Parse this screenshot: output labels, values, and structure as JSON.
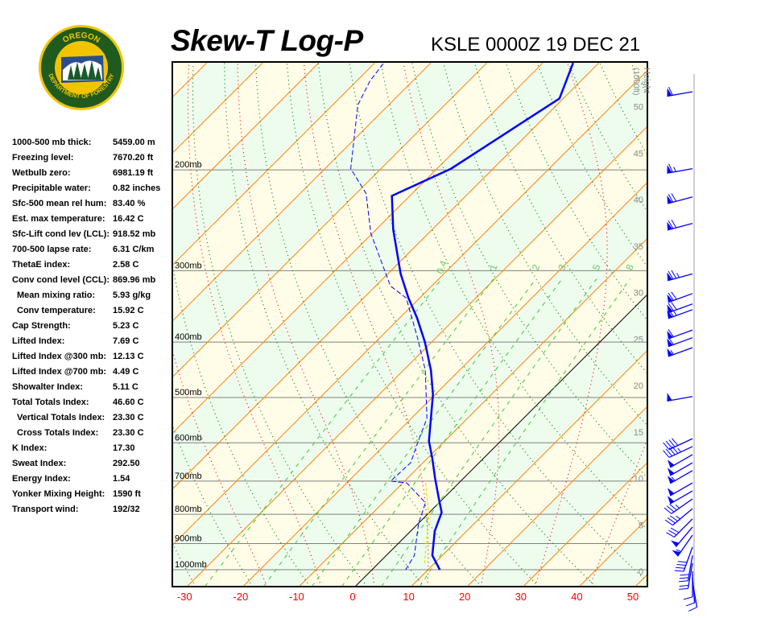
{
  "header": {
    "title": "Skew-T Log-P",
    "subtitle": "KSLE 0000Z 19 DEC 21"
  },
  "logo": {
    "text_top": "OREGON",
    "text_bottom": "DEPARTMENT OF FORESTRY"
  },
  "stats": [
    {
      "label": "1000-500 mb thick:",
      "value": "5459.00 m",
      "indent": false
    },
    {
      "label": "Freezing level:",
      "value": "7670.20 ft",
      "indent": false
    },
    {
      "label": "Wetbulb zero:",
      "value": "6981.19 ft",
      "indent": false
    },
    {
      "label": "Precipitable water:",
      "value": "0.82 inches",
      "indent": false
    },
    {
      "label": "Sfc-500 mean rel hum:",
      "value": "83.40 %",
      "indent": false
    },
    {
      "label": "Est. max temperature:",
      "value": "16.42 C",
      "indent": false
    },
    {
      "label": "Sfc-Lift cond lev (LCL):",
      "value": "918.52 mb",
      "indent": false
    },
    {
      "label": "700-500 lapse rate:",
      "value": "6.31 C/km",
      "indent": false
    },
    {
      "label": "ThetaE index:",
      "value": "2.58 C",
      "indent": false
    },
    {
      "label": "Conv cond level (CCL):",
      "value": "869.96 mb",
      "indent": false
    },
    {
      "label": "Mean mixing ratio:",
      "value": "5.93 g/kg",
      "indent": true
    },
    {
      "label": "Conv temperature:",
      "value": "15.92 C",
      "indent": true
    },
    {
      "label": "Cap Strength:",
      "value": "5.23 C",
      "indent": false
    },
    {
      "label": "Lifted Index:",
      "value": "7.69 C",
      "indent": false
    },
    {
      "label": "Lifted Index @300 mb:",
      "value": "12.13 C",
      "indent": false
    },
    {
      "label": "Lifted Index @700 mb:",
      "value": "4.49 C",
      "indent": false
    },
    {
      "label": "Showalter Index:",
      "value": "5.11 C",
      "indent": false
    },
    {
      "label": "Total Totals Index:",
      "value": "46.60 C",
      "indent": false
    },
    {
      "label": "Vertical Totals Index:",
      "value": "23.30 C",
      "indent": true
    },
    {
      "label": "Cross Totals Index:",
      "value": "23.30 C",
      "indent": true
    },
    {
      "label": "K Index:",
      "value": "17.30",
      "indent": false
    },
    {
      "label": "Sweat Index:",
      "value": "292.50",
      "indent": false
    },
    {
      "label": "Energy Index:",
      "value": "1.54",
      "indent": false
    },
    {
      "label": "Yonker Mixing Height:",
      "value": "1590 ft",
      "indent": false
    },
    {
      "label": "Transport wind:",
      "value": "192/32",
      "indent": false
    }
  ],
  "chart_data": {
    "type": "line",
    "title": "Skew-T Log-P",
    "subtitle": "KSLE 0000Z 19 DEC 21",
    "xlabel": "",
    "ylabel": "",
    "x_unit": "C",
    "x_ticks": [
      "-30",
      "-20",
      "-10",
      "0",
      "10",
      "20",
      "30",
      "40",
      "50"
    ],
    "pressure_range_mb": [
      1070,
      130
    ],
    "pressure_levels": [
      {
        "p": 200,
        "label": "200mb"
      },
      {
        "p": 300,
        "label": "300mb"
      },
      {
        "p": 400,
        "label": "400mb"
      },
      {
        "p": 500,
        "label": "500mb"
      },
      {
        "p": 600,
        "label": "600mb"
      },
      {
        "p": 700,
        "label": "700mb"
      },
      {
        "p": 800,
        "label": "800mb"
      },
      {
        "p": 900,
        "label": "900mb"
      },
      {
        "p": 1000,
        "label": "1000mb"
      }
    ],
    "height_axis": {
      "label": "Height",
      "unit": "(1000ft)",
      "ticks": [
        "0",
        "5",
        "10",
        "15",
        "20",
        "25",
        "30",
        "35",
        "40",
        "45",
        "50"
      ]
    },
    "mixing_ratio_lines": [
      "0.4",
      "1",
      "2",
      "3",
      "5",
      "8"
    ],
    "colors": {
      "temperature": "#0000ff",
      "dewpoint": "#0000ff",
      "wetbulb": "#e6e600",
      "isotherm": "#ff8000",
      "dry_adiabat": "#008000",
      "moist_adiabat": "#ff0000",
      "mixing_ratio": "#33cc33",
      "axis_label": "#ff0000",
      "band_a": "#fffde8",
      "band_b": "#eefcee"
    },
    "series": [
      {
        "name": "temperature",
        "p": [
          1000,
          944,
          856,
          794,
          752,
          693,
          639,
          596,
          494,
          448,
          400,
          363,
          335,
          304,
          254,
          222,
          199,
          150,
          130
        ],
        "t": [
          12.1,
          8.2,
          4.3,
          2.2,
          -0.7,
          -5.0,
          -9.1,
          -12.8,
          -20.4,
          -25.1,
          -31.2,
          -36.9,
          -42.0,
          -47.7,
          -57.0,
          -63.2,
          -57.5,
          -50.7,
          -54.6
        ]
      },
      {
        "name": "dewpoint",
        "p": [
          1000,
          944,
          829,
          764,
          705,
          700,
          650,
          596,
          544,
          448,
          393,
          335,
          319,
          258,
          220,
          199,
          154,
          140,
          130
        ],
        "t": [
          6.0,
          5.0,
          0.0,
          -2.4,
          -9.3,
          -12.5,
          -12.2,
          -14.7,
          -17.2,
          -26.1,
          -33.3,
          -42.4,
          -47.4,
          -60.3,
          -68.2,
          -75.4,
          -85.5,
          -87.6,
          -88.4
        ]
      },
      {
        "name": "wetbulb",
        "p": [
          974,
          803,
          700
        ],
        "t": [
          8.2,
          0.4,
          -6.3
        ]
      }
    ],
    "winds": [
      {
        "p": 146,
        "dir": 260,
        "spd": 60
      },
      {
        "p": 199,
        "dir": 260,
        "spd": 65
      },
      {
        "p": 223,
        "dir": 255,
        "spd": 70
      },
      {
        "p": 248,
        "dir": 255,
        "spd": 70
      },
      {
        "p": 304,
        "dir": 255,
        "spd": 75
      },
      {
        "p": 329,
        "dir": 250,
        "spd": 70
      },
      {
        "p": 343,
        "dir": 250,
        "spd": 70
      },
      {
        "p": 351,
        "dir": 250,
        "spd": 65
      },
      {
        "p": 381,
        "dir": 250,
        "spd": 60
      },
      {
        "p": 393,
        "dir": 250,
        "spd": 60
      },
      {
        "p": 409,
        "dir": 250,
        "spd": 55
      },
      {
        "p": 498,
        "dir": 260,
        "spd": 50
      },
      {
        "p": 590,
        "dir": 245,
        "spd": 40
      },
      {
        "p": 609,
        "dir": 245,
        "spd": 45
      },
      {
        "p": 629,
        "dir": 240,
        "spd": 50
      },
      {
        "p": 650,
        "dir": 240,
        "spd": 50
      },
      {
        "p": 671,
        "dir": 240,
        "spd": 55
      },
      {
        "p": 705,
        "dir": 240,
        "spd": 50
      },
      {
        "p": 728,
        "dir": 240,
        "spd": 50
      },
      {
        "p": 752,
        "dir": 235,
        "spd": 35
      },
      {
        "p": 782,
        "dir": 230,
        "spd": 35
      },
      {
        "p": 815,
        "dir": 225,
        "spd": 30
      },
      {
        "p": 842,
        "dir": 220,
        "spd": 50
      },
      {
        "p": 870,
        "dir": 215,
        "spd": 55
      },
      {
        "p": 913,
        "dir": 200,
        "spd": 40
      },
      {
        "p": 944,
        "dir": 190,
        "spd": 30
      },
      {
        "p": 974,
        "dir": 190,
        "spd": 20
      },
      {
        "p": 1006,
        "dir": 180,
        "spd": 10
      },
      {
        "p": 1030,
        "dir": 175,
        "spd": 10
      },
      {
        "p": 1050,
        "dir": 170,
        "spd": 10
      }
    ]
  }
}
